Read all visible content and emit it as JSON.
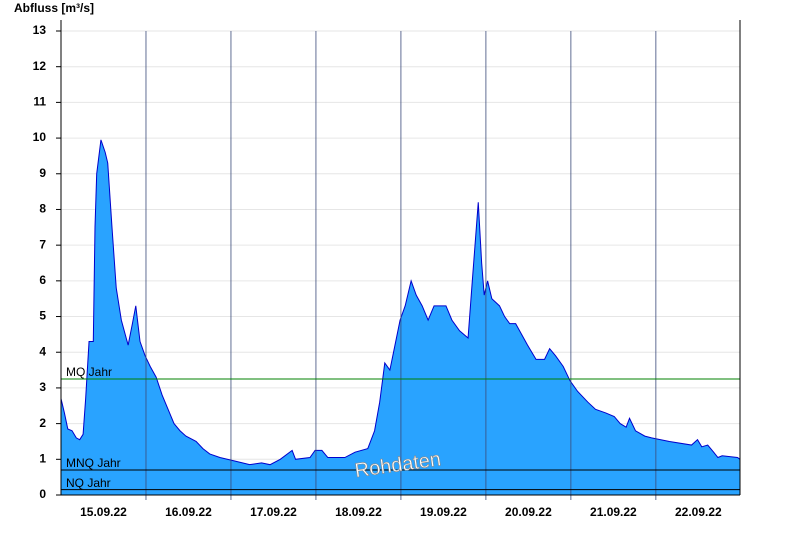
{
  "chart_data": {
    "type": "area",
    "title": "Abfluss [m³/s]",
    "series": [
      {
        "name": "Abfluss",
        "color": "#29a3ff",
        "line_color": "#0000cc",
        "x": [
          0.0,
          0.04,
          0.08,
          0.13,
          0.18,
          0.22,
          0.26,
          0.29,
          0.33,
          0.38,
          0.4,
          0.42,
          0.47,
          0.52,
          0.55,
          0.6,
          0.65,
          0.71,
          0.79,
          0.84,
          0.88,
          0.93,
          0.99,
          1.05,
          1.12,
          1.19,
          1.26,
          1.33,
          1.4,
          1.47,
          1.59,
          1.67,
          1.75,
          1.87,
          2.05,
          2.22,
          2.36,
          2.46,
          2.58,
          2.72,
          2.76,
          2.93,
          2.99,
          3.07,
          3.14,
          3.34,
          3.46,
          3.61,
          3.69,
          3.75,
          3.81,
          3.87,
          3.93,
          3.99,
          4.05,
          4.12,
          4.18,
          4.25,
          4.32,
          4.39,
          4.53,
          4.6,
          4.69,
          4.79,
          4.84,
          4.91,
          4.95,
          4.98,
          5.02,
          5.07,
          5.16,
          5.22,
          5.28,
          5.35,
          5.42,
          5.49,
          5.59,
          5.69,
          5.75,
          5.82,
          5.91,
          5.99,
          6.08,
          6.2,
          6.29,
          6.41,
          6.51,
          6.58,
          6.65,
          6.69,
          6.76,
          6.87,
          6.95,
          7.16,
          7.42,
          7.49,
          7.54,
          7.61,
          7.68,
          7.73,
          7.78,
          7.96,
          7.99
        ],
        "values": [
          2.7,
          2.3,
          1.85,
          1.8,
          1.6,
          1.55,
          1.7,
          2.7,
          4.3,
          4.3,
          7.5,
          9,
          9.95,
          9.6,
          9.3,
          7.5,
          5.8,
          4.9,
          4.2,
          4.8,
          5.3,
          4.3,
          3.9,
          3.6,
          3.3,
          2.8,
          2.4,
          2.0,
          1.8,
          1.65,
          1.5,
          1.3,
          1.15,
          1.05,
          0.95,
          0.85,
          0.9,
          0.85,
          1.0,
          1.25,
          1.0,
          1.05,
          1.25,
          1.25,
          1.05,
          1.05,
          1.2,
          1.3,
          1.8,
          2.6,
          3.7,
          3.5,
          4.2,
          4.9,
          5.3,
          6.0,
          5.6,
          5.3,
          4.9,
          5.3,
          5.3,
          4.9,
          4.6,
          4.4,
          6.0,
          8.2,
          6.5,
          5.6,
          6.0,
          5.5,
          5.3,
          5.0,
          4.8,
          4.8,
          4.5,
          4.2,
          3.8,
          3.8,
          4.1,
          3.9,
          3.6,
          3.2,
          2.9,
          2.6,
          2.4,
          2.3,
          2.2,
          2.0,
          1.9,
          2.15,
          1.8,
          1.65,
          1.6,
          1.5,
          1.4,
          1.55,
          1.35,
          1.4,
          1.2,
          1.05,
          1.1,
          1.05,
          1.0
        ]
      }
    ],
    "xlim": [
      0,
      7.99
    ],
    "xticks": [
      {
        "value": 0.5,
        "label": "15.09.22"
      },
      {
        "value": 1.5,
        "label": "16.09.22"
      },
      {
        "value": 2.5,
        "label": "17.09.22"
      },
      {
        "value": 3.5,
        "label": "18.09.22"
      },
      {
        "value": 4.5,
        "label": "19.09.22"
      },
      {
        "value": 5.5,
        "label": "20.09.22"
      },
      {
        "value": 6.5,
        "label": "21.09.22"
      },
      {
        "value": 7.5,
        "label": "22.09.22"
      }
    ],
    "ylim": [
      0,
      13
    ],
    "yticks": [
      0,
      1,
      2,
      3,
      4,
      5,
      6,
      7,
      8,
      9,
      10,
      11,
      12,
      13
    ],
    "grid": true,
    "ref_lines": [
      {
        "label": "MQ Jahr",
        "value": 3.25,
        "color": "#008000"
      },
      {
        "label": "MNQ Jahr",
        "value": 0.7,
        "color": "#000000"
      },
      {
        "label": "NQ Jahr",
        "value": 0.15,
        "color": "#000000"
      }
    ],
    "watermark": "Rohdaten"
  }
}
